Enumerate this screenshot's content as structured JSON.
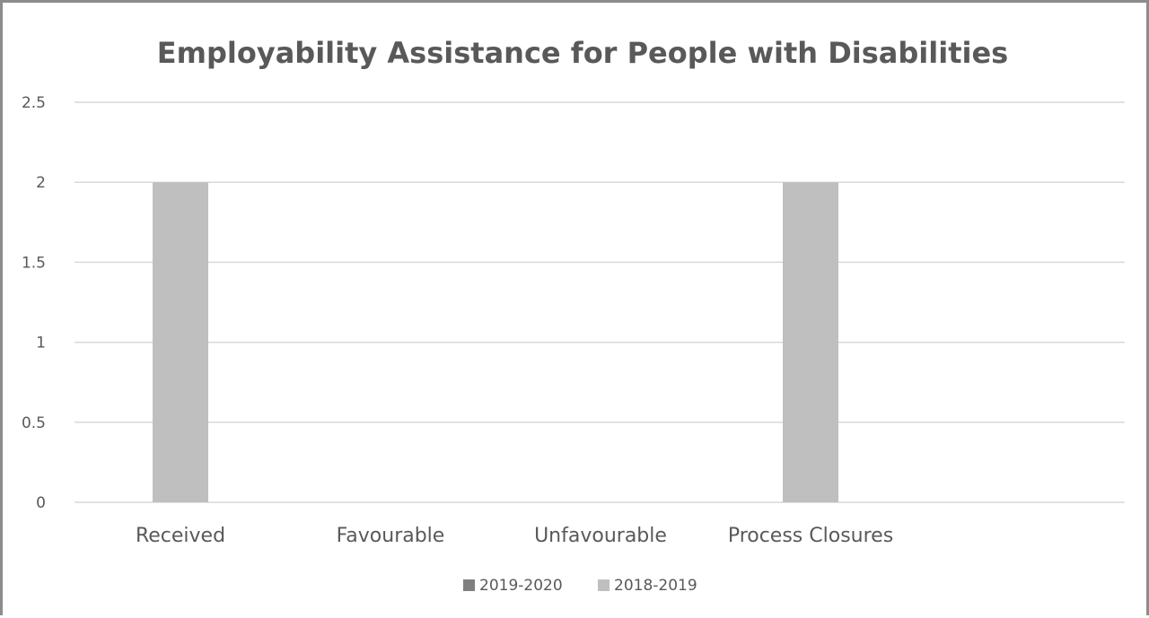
{
  "chart_data": {
    "type": "bar",
    "title": "Employability Assistance for People with Disabilities",
    "xlabel": "",
    "ylabel": "",
    "categories": [
      "Received",
      "Favourable",
      "Unfavourable",
      "Process Closures"
    ],
    "series": [
      {
        "name": "2019-2020",
        "values": [
          0,
          0,
          0,
          0
        ],
        "color": "#808080"
      },
      {
        "name": "2018-2019",
        "values": [
          2,
          0,
          0,
          2
        ],
        "color": "#bfbfbf"
      }
    ],
    "ylim": [
      0,
      2.5
    ],
    "yticks": [
      "0",
      "0.5",
      "1",
      "1.5",
      "2",
      "2.5"
    ],
    "grid": true,
    "legend_position": "bottom"
  }
}
